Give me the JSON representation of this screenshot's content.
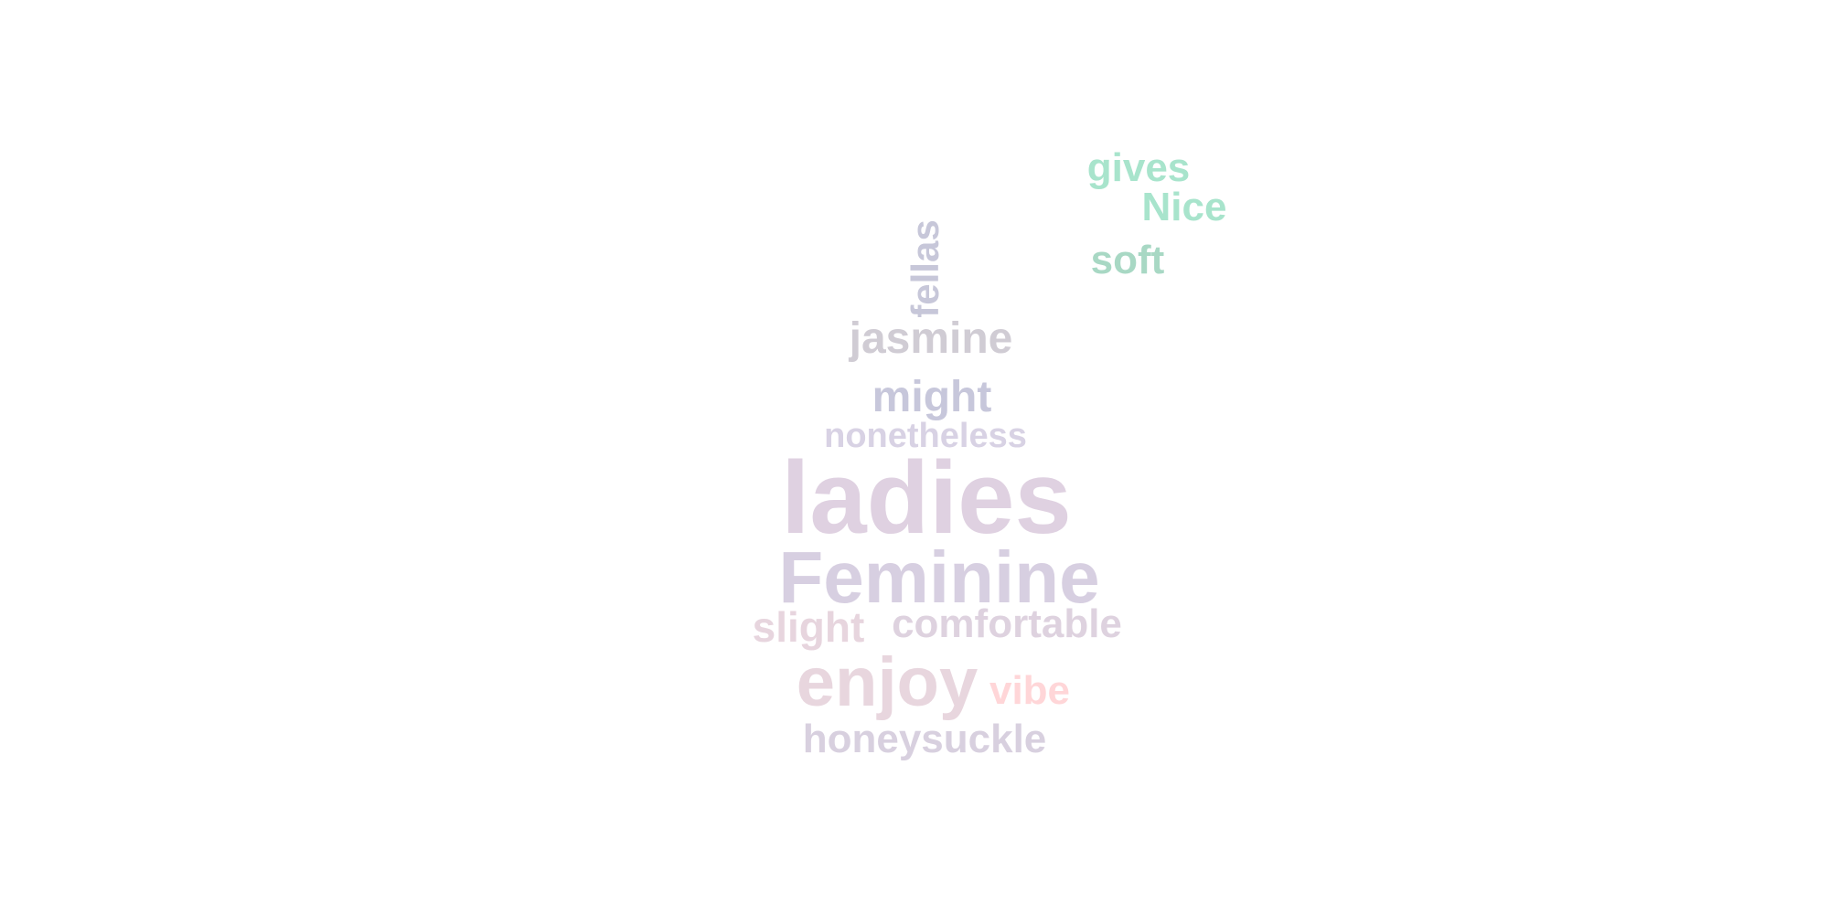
{
  "words": [
    {
      "key": "gives",
      "text": "gives",
      "color": "#a8e4cc"
    },
    {
      "key": "nice",
      "text": "Nice",
      "color": "#a8e4cc"
    },
    {
      "key": "soft",
      "text": "soft",
      "color": "#a8d8c4"
    },
    {
      "key": "fellas",
      "text": "fellas",
      "color": "#c7c7d9"
    },
    {
      "key": "jasmine",
      "text": "jasmine",
      "color": "#d0ccd4"
    },
    {
      "key": "might",
      "text": "might",
      "color": "#c7c7db"
    },
    {
      "key": "nonetheless",
      "text": "nonetheless",
      "color": "#d8d2e4"
    },
    {
      "key": "ladies",
      "text": "ladies",
      "color": "#dfd1e1"
    },
    {
      "key": "feminine",
      "text": "Feminine",
      "color": "#d7cfe1"
    },
    {
      "key": "slight",
      "text": "slight",
      "color": "#e7d5de"
    },
    {
      "key": "comfortable",
      "text": "comfortable",
      "color": "#ded2df"
    },
    {
      "key": "enjoy",
      "text": "enjoy",
      "color": "#e8d6de"
    },
    {
      "key": "vibe",
      "text": "vibe",
      "color": "#ffd6d8"
    },
    {
      "key": "honeysuckle",
      "text": "honeysuckle",
      "color": "#d8d0df"
    }
  ]
}
